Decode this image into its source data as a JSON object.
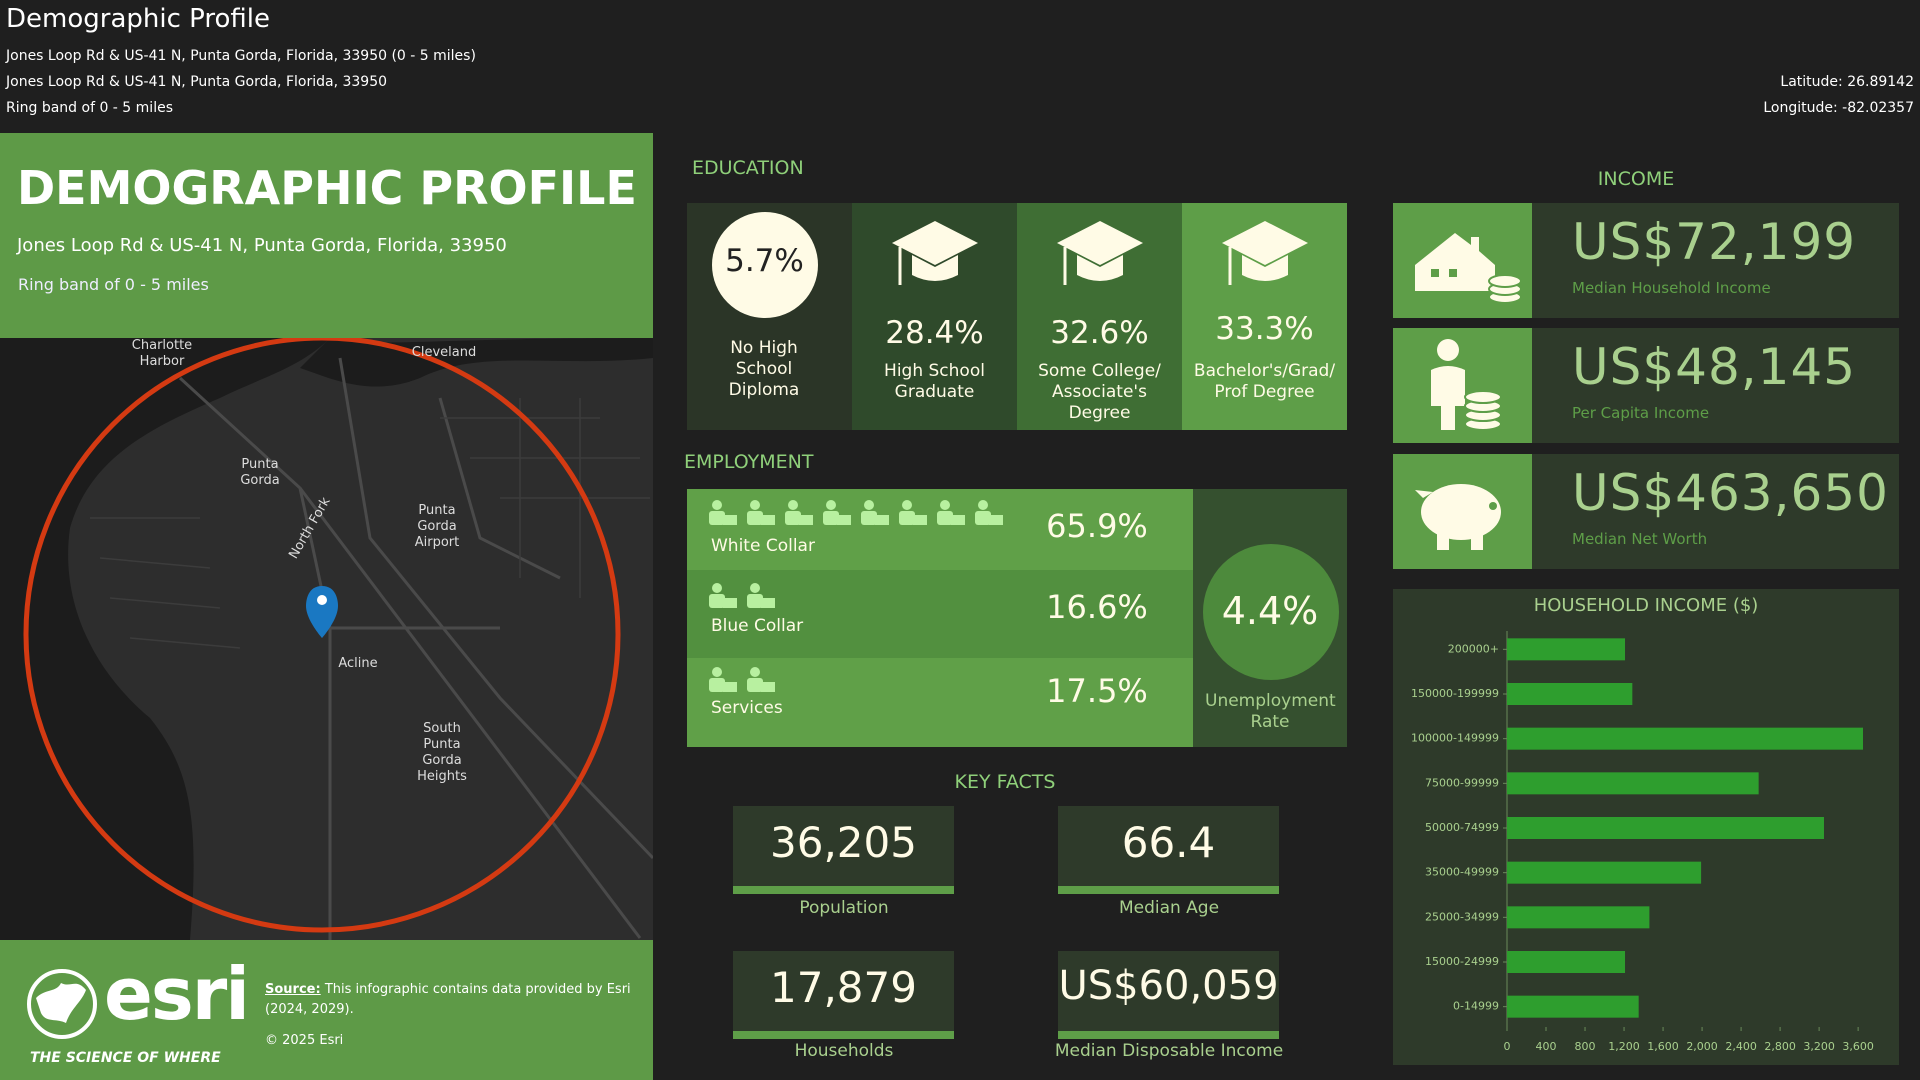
{
  "header": {
    "title": "Demographic Profile",
    "lines": [
      "Jones Loop Rd & US-41 N, Punta Gorda, Florida, 33950 (0 - 5 miles)",
      "Jones Loop Rd & US-41 N, Punta Gorda, Florida, 33950",
      "Ring band of 0 - 5 miles"
    ],
    "latitude": "Latitude: 26.89142",
    "longitude": "Longitude: -82.02357"
  },
  "banner": {
    "title": "DEMOGRAPHIC PROFILE",
    "address": "Jones Loop Rd & US-41 N, Punta Gorda, Florida, 33950",
    "ring": "Ring band of 0 - 5 miles"
  },
  "map": {
    "labels": [
      {
        "lines": [
          "Charlotte",
          "Harbor"
        ]
      },
      {
        "lines": [
          "Cleveland"
        ]
      },
      {
        "lines": [
          "Punta",
          "Gorda"
        ]
      },
      {
        "lines": [
          "Punta",
          "Gorda",
          "Airport"
        ]
      },
      {
        "lines": [
          "North Fork"
        ]
      },
      {
        "lines": [
          "Acline"
        ]
      },
      {
        "lines": [
          "South",
          "Punta",
          "Gorda",
          "Heights"
        ]
      }
    ]
  },
  "footer": {
    "logo": "esri",
    "tagline": "THE SCIENCE OF WHERE",
    "source_label": "Source:",
    "source_text": "This infographic contains data provided by Esri (2024, 2029).",
    "copyright": "© 2025 Esri"
  },
  "education": {
    "title": "EDUCATION",
    "items": [
      {
        "value": "5.7%",
        "label": "No High School Diploma"
      },
      {
        "value": "28.4%",
        "label": "High School Graduate"
      },
      {
        "value": "32.6%",
        "label": "Some College/ Associate's Degree"
      },
      {
        "value": "33.3%",
        "label": "Bachelor's/Grad/ Prof Degree"
      }
    ]
  },
  "employment": {
    "title": "EMPLOYMENT",
    "rows": [
      {
        "value": "65.9%",
        "label": "White Collar"
      },
      {
        "value": "16.6%",
        "label": "Blue Collar"
      },
      {
        "value": "17.5%",
        "label": "Services"
      }
    ],
    "unemployment": {
      "value": "4.4%",
      "label": "Unemployment Rate"
    }
  },
  "key_facts": {
    "title": "KEY FACTS",
    "items": [
      {
        "value": "36,205",
        "label": "Population"
      },
      {
        "value": "66.4",
        "label": "Median Age"
      },
      {
        "value": "17,879",
        "label": "Households"
      },
      {
        "value": "US$60,059",
        "label": "Median Disposable Income"
      }
    ]
  },
  "income": {
    "title": "INCOME",
    "items": [
      {
        "value": "US$72,199",
        "label": "Median Household Income"
      },
      {
        "value": "US$48,145",
        "label": "Per Capita Income"
      },
      {
        "value": "US$463,650",
        "label": "Median Net Worth"
      }
    ]
  },
  "chart_data": {
    "type": "bar",
    "title": "HOUSEHOLD INCOME ($)",
    "categories": [
      "200000+",
      "150000-199999",
      "100000-149999",
      "75000-99999",
      "50000-74999",
      "35000-49999",
      "25000-34999",
      "15000-24999",
      "0-14999"
    ],
    "values": [
      1210,
      1285,
      3650,
      2580,
      3250,
      1990,
      1460,
      1210,
      1350
    ],
    "color": "#2e9e2e",
    "orientation": "horizontal",
    "xlim": [
      0,
      3650
    ],
    "xticks": [
      0,
      400,
      800,
      {
        "value": 1200,
        "label": "1,200"
      },
      {
        "value": 1600,
        "label": "1,600"
      },
      {
        "value": 2000,
        "label": "2,000"
      },
      {
        "value": 2400,
        "label": "2,400"
      },
      {
        "value": 2800,
        "label": "2,800"
      },
      {
        "value": 3200,
        "label": "3,200"
      },
      {
        "value": 3600,
        "label": "3,600"
      }
    ]
  }
}
